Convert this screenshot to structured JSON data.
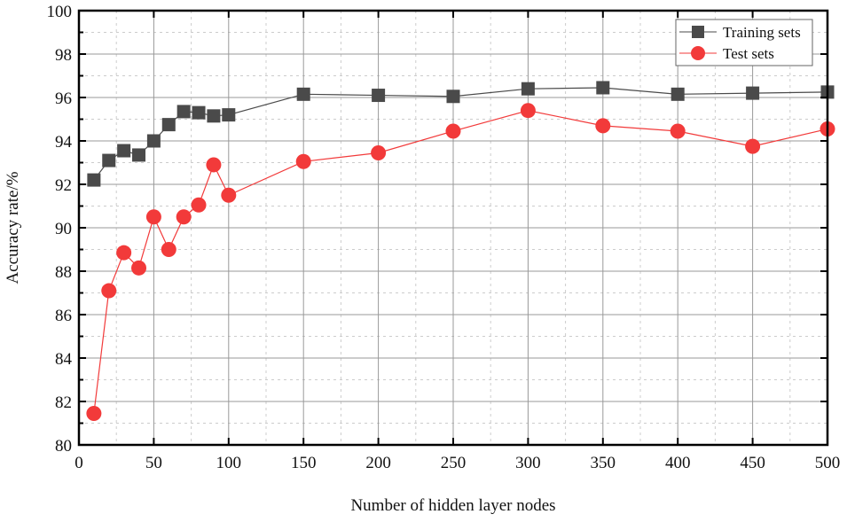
{
  "chart_data": {
    "type": "line",
    "title": "",
    "xlabel": "Number of hidden layer nodes",
    "ylabel": "Accuracy rate/%",
    "xlim": [
      0,
      500
    ],
    "ylim": [
      80,
      100
    ],
    "xticks": [
      0,
      50,
      100,
      150,
      200,
      250,
      300,
      350,
      400,
      450,
      500
    ],
    "yticks": [
      80,
      82,
      84,
      86,
      88,
      90,
      92,
      94,
      96,
      98,
      100
    ],
    "grid": true,
    "legend_position": "top-right",
    "x": [
      10,
      20,
      30,
      40,
      50,
      60,
      70,
      80,
      90,
      100,
      150,
      200,
      250,
      300,
      350,
      400,
      450,
      500
    ],
    "series": [
      {
        "name": "Training sets",
        "color": "#4a4a4a",
        "marker": "square",
        "values": [
          92.2,
          93.1,
          93.55,
          93.35,
          94.0,
          94.75,
          95.35,
          95.3,
          95.15,
          95.2,
          96.15,
          96.1,
          96.05,
          96.4,
          96.45,
          96.15,
          96.2,
          96.25
        ]
      },
      {
        "name": "Test sets",
        "color": "#f23a3a",
        "marker": "circle",
        "values": [
          81.45,
          87.1,
          88.85,
          88.15,
          90.5,
          89.0,
          90.5,
          91.05,
          92.9,
          91.5,
          93.05,
          93.45,
          94.45,
          95.4,
          94.7,
          94.45,
          93.75,
          94.55
        ]
      }
    ]
  }
}
